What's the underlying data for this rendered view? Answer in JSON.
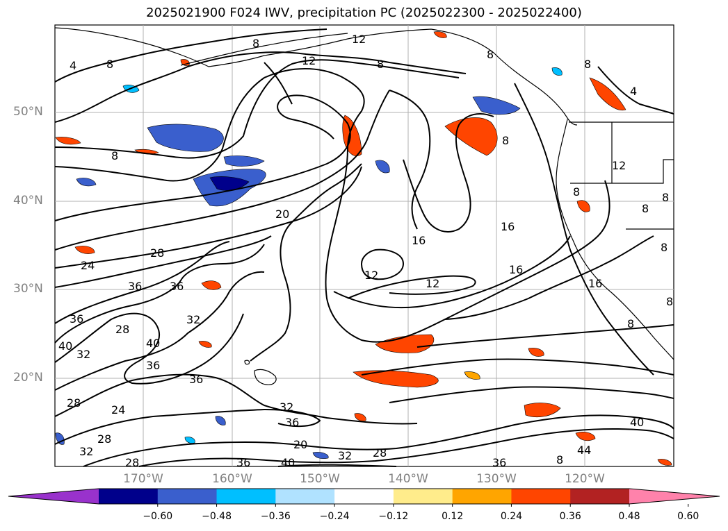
{
  "title": "2025021900 F024 IWV, precipitation PC (2025022300 - 2025022400)",
  "lat_labels": [
    "50°N",
    "40°N",
    "30°N",
    "20°N"
  ],
  "lon_labels": [
    "170°W",
    "160°W",
    "150°W",
    "140°W",
    "130°W",
    "120°W"
  ],
  "contour_labels": [
    "4",
    "8",
    "12",
    "12",
    "8",
    "8",
    "8",
    "4",
    "8",
    "8",
    "20",
    "16",
    "16",
    "16",
    "16",
    "12",
    "12",
    "28",
    "24",
    "36",
    "36",
    "36",
    "32",
    "28",
    "32",
    "40",
    "40",
    "36",
    "36",
    "28",
    "24",
    "28",
    "32",
    "32",
    "36",
    "28",
    "32",
    "20",
    "40",
    "28",
    "36",
    "40",
    "36",
    "44",
    "8",
    "8",
    "8",
    "8",
    "12",
    "8",
    "8",
    "8",
    "8"
  ],
  "colorbar": {
    "ticks": [
      "−0.60",
      "−0.48",
      "−0.36",
      "−0.24",
      "−0.12",
      "0.12",
      "0.24",
      "0.36",
      "0.48",
      "0.60"
    ],
    "colors": [
      "#9932cc",
      "#00008b",
      "#3a5fcd",
      "#00bfff",
      "#b0e2ff",
      "#ffffff",
      "#ffec8b",
      "#ffa500",
      "#ff4500",
      "#b22222",
      "#ff82ab"
    ]
  }
}
